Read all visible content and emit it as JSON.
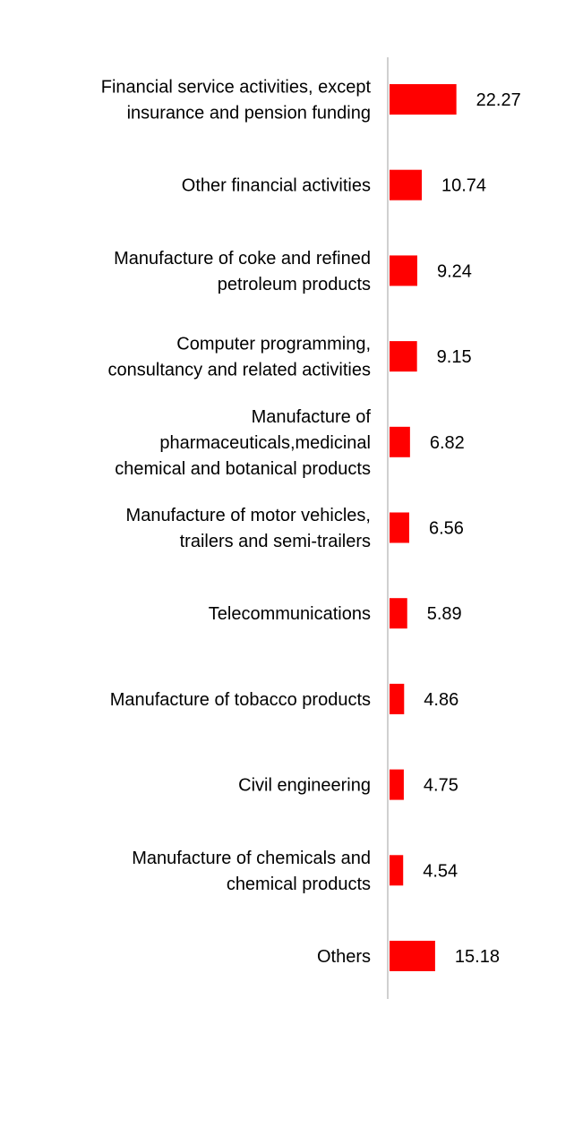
{
  "chart_data": {
    "type": "bar",
    "orientation": "horizontal",
    "categories": [
      [
        "Financial service activities, except",
        "insurance and pension funding"
      ],
      [
        "Other financial activities"
      ],
      [
        "Manufacture of coke and refined",
        "petroleum products"
      ],
      [
        "Computer programming,",
        "consultancy and related activities"
      ],
      [
        "Manufacture of",
        "pharmaceuticals,medicinal",
        "chemical and botanical products"
      ],
      [
        "Manufacture of motor vehicles,",
        "trailers and semi-trailers"
      ],
      [
        "Telecommunications"
      ],
      [
        "Manufacture of tobacco products"
      ],
      [
        "Civil engineering"
      ],
      [
        "Manufacture of chemicals and",
        "chemical products"
      ],
      [
        "Others"
      ]
    ],
    "values": [
      22.27,
      10.74,
      9.24,
      9.15,
      6.82,
      6.56,
      5.89,
      4.86,
      4.75,
      4.54,
      15.18
    ],
    "value_labels": [
      "22.27",
      "10.74",
      "9.24",
      "9.15",
      "6.82",
      "6.56",
      "5.89",
      "4.86",
      "4.75",
      "4.54",
      "15.18"
    ],
    "bar_color": "#ff0000",
    "axis_color": "#d0d0d0",
    "title": "",
    "xlabel": "",
    "ylabel": "",
    "grid": false,
    "legend": "none",
    "data_labels": "outside-end"
  }
}
